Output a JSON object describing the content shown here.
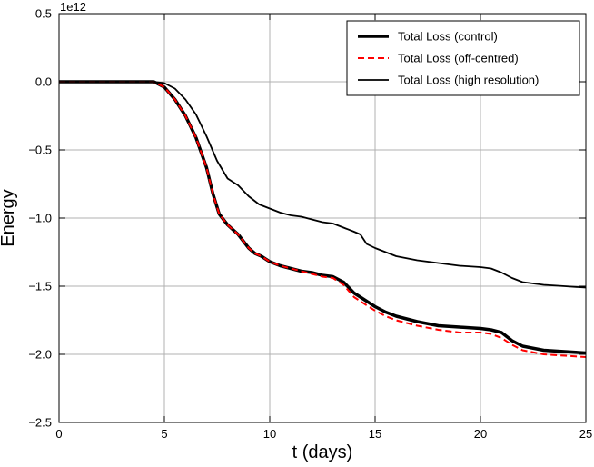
{
  "chart_data": {
    "type": "line",
    "title": "",
    "xlabel": "t (days)",
    "ylabel": "Energy",
    "y_multiplier_label": "1e12",
    "xlim": [
      0,
      25
    ],
    "ylim": [
      -2.5,
      0.5
    ],
    "x_ticks": [
      0,
      5,
      10,
      15,
      20,
      25
    ],
    "x_tick_labels": [
      "0",
      "5",
      "10",
      "15",
      "20",
      "25"
    ],
    "y_ticks": [
      0.5,
      0.0,
      -0.5,
      -1.0,
      -1.5,
      -2.0,
      -2.5
    ],
    "y_tick_labels": [
      "0.5",
      "0.0",
      "−0.5",
      "−1.0",
      "−1.5",
      "−2.0",
      "−2.5"
    ],
    "grid": true,
    "legend_position": "upper-right",
    "series": [
      {
        "name": "Total Loss (control)",
        "color": "#000000",
        "style": "solid-thick",
        "x": [
          0,
          4.5,
          5.0,
          5.5,
          6.0,
          6.5,
          7.0,
          7.3,
          7.6,
          8.0,
          8.5,
          9.0,
          9.3,
          9.6,
          10.0,
          10.5,
          11.0,
          11.5,
          12.0,
          12.5,
          13.0,
          13.5,
          14.0,
          14.5,
          15.0,
          15.5,
          16.0,
          16.5,
          17.0,
          18.0,
          19.0,
          20.0,
          20.5,
          21.0,
          21.5,
          22.0,
          23.0,
          24.0,
          25.0
        ],
        "y": [
          0.0,
          0.0,
          -0.04,
          -0.13,
          -0.25,
          -0.41,
          -0.63,
          -0.82,
          -0.97,
          -1.05,
          -1.12,
          -1.22,
          -1.26,
          -1.28,
          -1.32,
          -1.35,
          -1.37,
          -1.39,
          -1.4,
          -1.42,
          -1.43,
          -1.47,
          -1.55,
          -1.6,
          -1.65,
          -1.69,
          -1.72,
          -1.74,
          -1.76,
          -1.79,
          -1.8,
          -1.81,
          -1.82,
          -1.84,
          -1.9,
          -1.94,
          -1.97,
          -1.98,
          -1.99
        ]
      },
      {
        "name": "Total Loss (off-centred)",
        "color": "#ff0000",
        "style": "dashed",
        "x": [
          0,
          4.5,
          5.0,
          5.5,
          6.0,
          6.5,
          7.0,
          7.3,
          7.6,
          8.0,
          8.5,
          9.0,
          9.3,
          9.6,
          10.0,
          10.5,
          11.0,
          11.5,
          12.0,
          12.5,
          13.0,
          13.5,
          14.0,
          14.5,
          15.0,
          15.5,
          16.0,
          16.5,
          17.0,
          18.0,
          19.0,
          20.0,
          20.5,
          21.0,
          21.5,
          22.0,
          23.0,
          24.0,
          25.0
        ],
        "y": [
          0.0,
          0.0,
          -0.04,
          -0.13,
          -0.25,
          -0.41,
          -0.63,
          -0.82,
          -0.97,
          -1.05,
          -1.12,
          -1.22,
          -1.26,
          -1.28,
          -1.32,
          -1.35,
          -1.37,
          -1.39,
          -1.41,
          -1.43,
          -1.44,
          -1.49,
          -1.58,
          -1.63,
          -1.68,
          -1.72,
          -1.75,
          -1.77,
          -1.79,
          -1.82,
          -1.84,
          -1.84,
          -1.85,
          -1.88,
          -1.93,
          -1.97,
          -2.0,
          -2.01,
          -2.02
        ]
      },
      {
        "name": "Total Loss (high resolution)",
        "color": "#000000",
        "style": "solid",
        "x": [
          0,
          4.5,
          5.0,
          5.5,
          6.0,
          6.5,
          7.0,
          7.5,
          8.0,
          8.5,
          9.0,
          9.5,
          10.0,
          10.5,
          11.0,
          11.5,
          12.0,
          12.5,
          13.0,
          13.5,
          14.0,
          14.3,
          14.6,
          15.0,
          15.5,
          16.0,
          17.0,
          18.0,
          19.0,
          20.0,
          20.5,
          21.0,
          21.5,
          22.0,
          23.0,
          24.0,
          25.0
        ],
        "y": [
          0.0,
          0.0,
          -0.01,
          -0.05,
          -0.13,
          -0.24,
          -0.4,
          -0.58,
          -0.71,
          -0.76,
          -0.84,
          -0.9,
          -0.93,
          -0.96,
          -0.98,
          -0.99,
          -1.01,
          -1.03,
          -1.04,
          -1.07,
          -1.1,
          -1.12,
          -1.19,
          -1.22,
          -1.25,
          -1.28,
          -1.31,
          -1.33,
          -1.35,
          -1.36,
          -1.37,
          -1.4,
          -1.44,
          -1.47,
          -1.49,
          -1.5,
          -1.51
        ]
      }
    ]
  }
}
